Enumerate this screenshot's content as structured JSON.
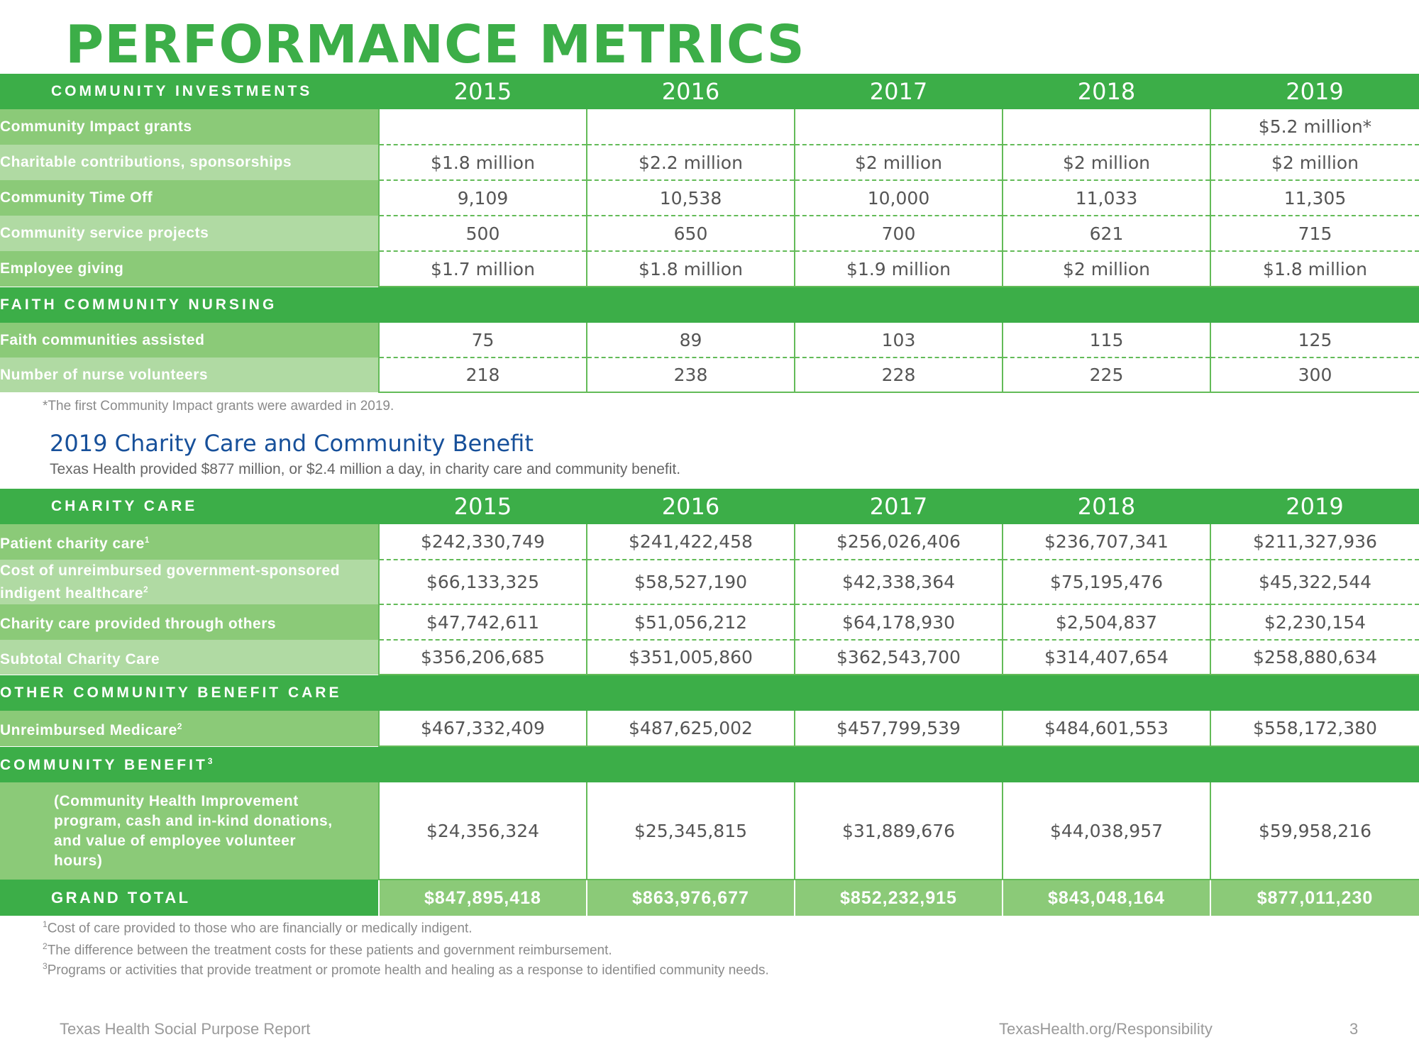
{
  "title": "PERFORMANCE METRICS",
  "years": [
    "2015",
    "2016",
    "2017",
    "2018",
    "2019"
  ],
  "community": {
    "header": "COMMUNITY INVESTMENTS",
    "rows": [
      {
        "label": "Community Impact grants",
        "values": [
          "",
          "",
          "",
          "",
          "$5.2 million*"
        ]
      },
      {
        "label": "Charitable contributions, sponsorships",
        "values": [
          "$1.8 million",
          "$2.2 million",
          "$2 million",
          "$2 million",
          "$2 million"
        ]
      },
      {
        "label": "Community Time Off",
        "values": [
          "9,109",
          "10,538",
          "10,000",
          "11,033",
          "11,305"
        ]
      },
      {
        "label": "Community service projects",
        "values": [
          "500",
          "650",
          "700",
          "621",
          "715"
        ]
      },
      {
        "label": "Employee giving",
        "values": [
          "$1.7 million",
          "$1.8 million",
          "$1.9 million",
          "$2 million",
          "$1.8 million"
        ]
      }
    ]
  },
  "faith": {
    "header": "FAITH COMMUNITY NURSING",
    "rows": [
      {
        "label": "Faith communities assisted",
        "values": [
          "75",
          "89",
          "103",
          "115",
          "125"
        ]
      },
      {
        "label": "Number of nurse volunteers",
        "values": [
          "218",
          "238",
          "228",
          "225",
          "300"
        ]
      }
    ]
  },
  "footnote_star": "*The first Community Impact grants were awarded in 2019.",
  "charity_section": {
    "title": "2019 Charity Care and Community Benefit",
    "subtitle": "Texas Health provided $877 million, or $2.4 million a day, in charity care and community benefit."
  },
  "charity": {
    "header": "CHARITY CARE",
    "rows": [
      {
        "label": "Patient charity care",
        "sup": "1",
        "values": [
          "$242,330,749",
          "$241,422,458",
          "$256,026,406",
          "$236,707,341",
          "$211,327,936"
        ]
      },
      {
        "label": "Cost of unreimbursed government-sponsored indigent healthcare",
        "sup": "2",
        "values": [
          "$66,133,325",
          "$58,527,190",
          "$42,338,364",
          "$75,195,476",
          "$45,322,544"
        ]
      },
      {
        "label": "Charity care provided through others",
        "sup": "",
        "values": [
          "$47,742,611",
          "$51,056,212",
          "$64,178,930",
          "$2,504,837",
          "$2,230,154"
        ]
      },
      {
        "label": "Subtotal Charity Care",
        "sup": "",
        "values": [
          "$356,206,685",
          "$351,005,860",
          "$362,543,700",
          "$314,407,654",
          "$258,880,634"
        ]
      }
    ]
  },
  "other": {
    "header": "OTHER COMMUNITY BENEFIT CARE",
    "rows": [
      {
        "label": "Unreimbursed Medicare",
        "sup": "2",
        "values": [
          "$467,332,409",
          "$487,625,002",
          "$457,799,539",
          "$484,601,553",
          "$558,172,380"
        ]
      }
    ]
  },
  "benefit": {
    "header": "COMMUNITY BENEFIT",
    "header_sup": "3",
    "rows": [
      {
        "label": "(Community Health Improvement program, cash and in-kind donations, and value of employee volunteer hours)",
        "values": [
          "$24,356,324",
          "$25,345,815",
          "$31,889,676",
          "$44,038,957",
          "$59,958,216"
        ]
      }
    ]
  },
  "grand_total": {
    "label": "GRAND TOTAL",
    "values": [
      "$847,895,418",
      "$863,976,677",
      "$852,232,915",
      "$843,048,164",
      "$877,011,230"
    ]
  },
  "footnotes": [
    {
      "mark": "1",
      "text": "Cost of care provided to those who are financially or medically indigent."
    },
    {
      "mark": "2",
      "text": "The difference between the treatment costs for these patients and government reimbursement."
    },
    {
      "mark": "3",
      "text": "Programs or activities that provide treatment or promote health and healing as a response to identified community needs."
    }
  ],
  "footer": {
    "left": "Texas Health Social Purpose Report",
    "right": "TexasHealth.org/Responsibility",
    "page": "3"
  }
}
